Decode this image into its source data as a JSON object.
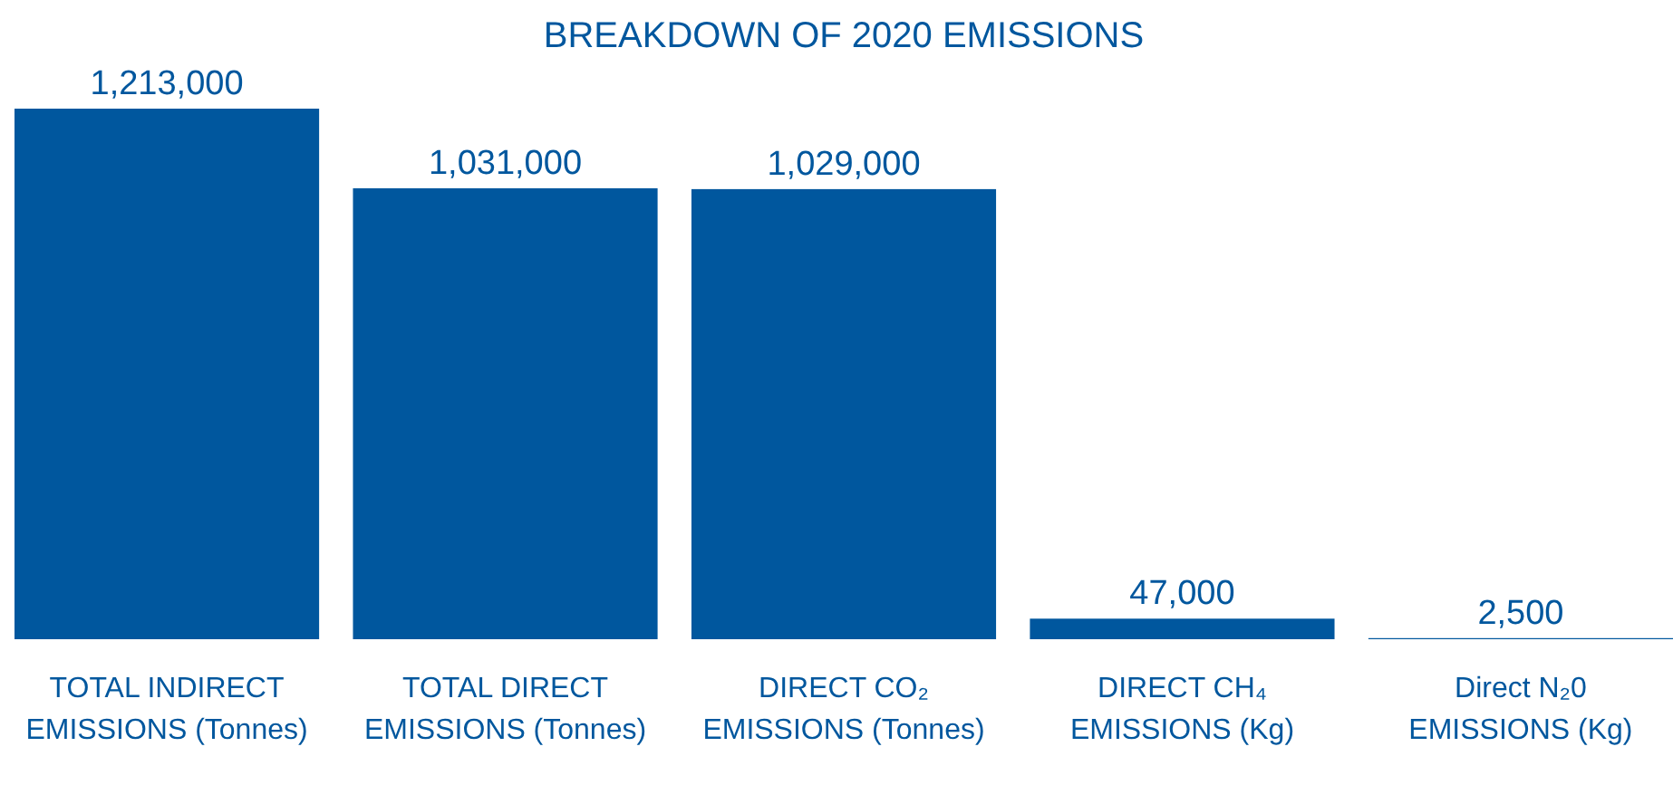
{
  "chart_data": {
    "type": "bar",
    "title": "BREAKDOWN OF 2020 EMISSIONS",
    "categories": [
      "TOTAL INDIRECT EMISSIONS (Tonnes)",
      "TOTAL DIRECT EMISSIONS (Tonnes)",
      "DIRECT CO₂ EMISSIONS (Tonnes)",
      "DIRECT CH₄ EMISSIONS (Kg)",
      "Direct N₂0 EMISSIONS (Kg)"
    ],
    "values": [
      1213000,
      1031000,
      1029000,
      47000,
      2500
    ],
    "value_labels": [
      "1,213,000",
      "1,031,000",
      "1,029,000",
      "47,000",
      "2,500"
    ],
    "color": "#00579e"
  }
}
